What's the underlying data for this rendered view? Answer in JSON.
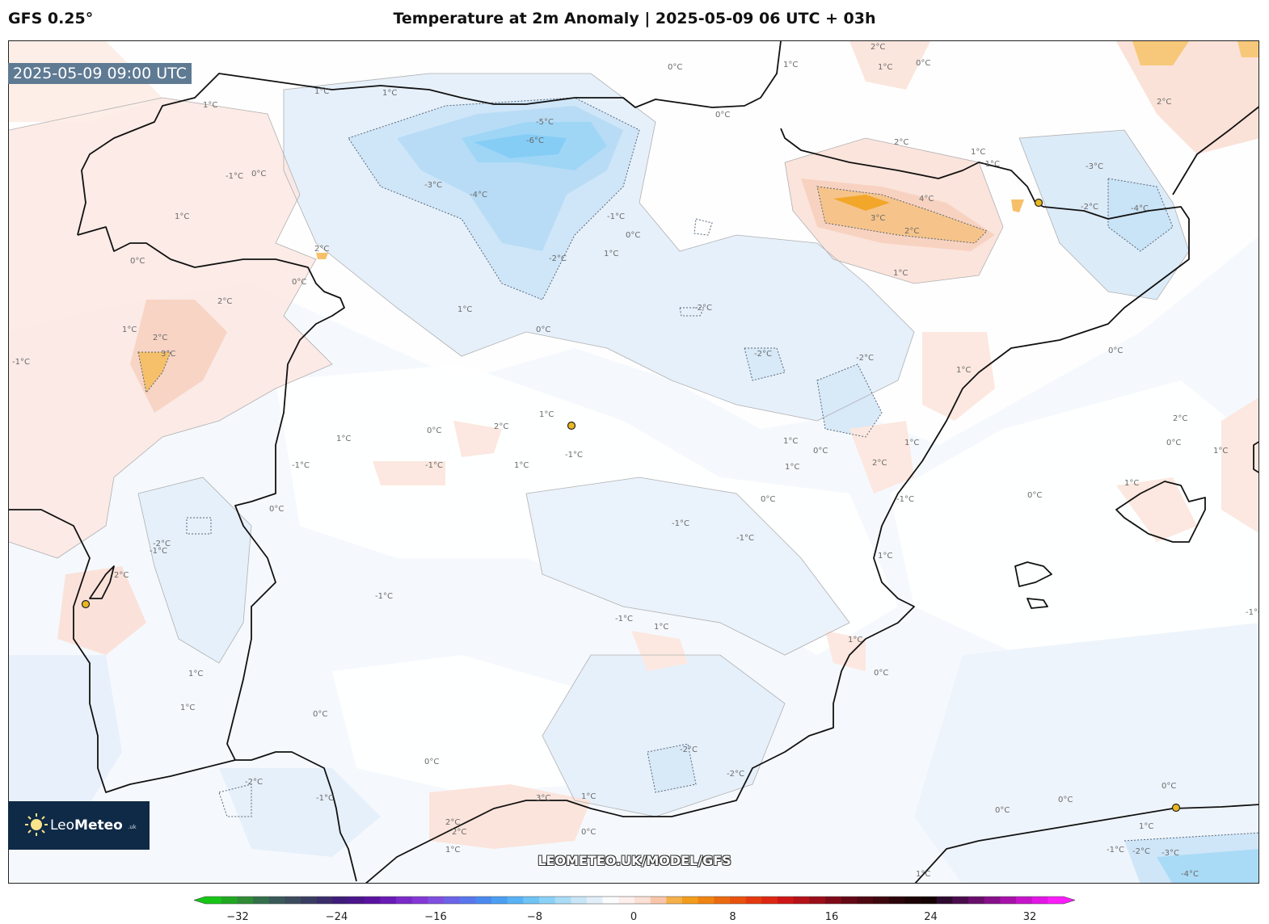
{
  "header": {
    "model": "GFS 0.25°",
    "title": "Temperature at 2m Anomaly | 2025-05-09 06 UTC + 03h"
  },
  "map": {
    "timestamp": "2025-05-09 09:00 UTC",
    "watermark": "LEOMETEO.UK/MODEL/GFS",
    "contour_labels": {
      "c1": "0°C",
      "c2": "1°C",
      "c3": "1°C",
      "c4": "-5°C",
      "c5": "-6°C",
      "c6": "-3°C",
      "c7": "-4°C",
      "c8": "-2°C",
      "c9": "-1°C",
      "c10": "0°C",
      "c11": "1°C",
      "c12": "2°C",
      "c13": "-1°C",
      "c14": "0°C",
      "c15": "2°C",
      "c16": "0°C",
      "c17": "2°C",
      "c18": "3°C",
      "c19": "1°C",
      "c20": "1°C",
      "c21": "0°C",
      "c22": "1°C",
      "c23": "1°C",
      "c24": "0°C",
      "c25": "1°C",
      "c26": "1°C",
      "c27": "-1°C",
      "c28": "2°C",
      "c29": "1°C",
      "c30": "1°C",
      "c31": "0°C",
      "c32": "-1°C",
      "c33": "-1°C",
      "c34": "1°C",
      "c35": "-1°C",
      "c36": "0°C",
      "c37": "-2°C",
      "c38": "-2°C",
      "c39": "-2°C",
      "c40": "-2°C",
      "c41": "1°C",
      "c42": "0°C",
      "c43": "1°C",
      "c44": "2°C",
      "c45": "-1°C",
      "c46": "0°C",
      "c47": "-1°C",
      "c48": "1°C",
      "c49": "0°C",
      "c50": "2°C",
      "c51": "4°C",
      "c52": "3°C",
      "c53": "2°C",
      "c54": "1°C",
      "c55": "1°C",
      "c56": "0°C",
      "c57": "2°C",
      "c58": "1°C",
      "c59": "-1°C",
      "c60": "-3°C",
      "c61": "-2°C",
      "c62": "-4°C",
      "c63": "2°C",
      "c64": "0°C",
      "c65": "0°C",
      "c66": "1°C",
      "c67": "1°C",
      "c68": "0°C",
      "c69": "-1°C",
      "c70": "0°C",
      "c71": "2°C",
      "c72": "1°C",
      "c73": "-1°C",
      "c74": "-2°C",
      "c75": "-2°C",
      "c76": "1°C",
      "c77": "0°C",
      "c78": "1°C",
      "c79": "0°C",
      "c80": "-1°C",
      "c81": "0°C",
      "c82": "0°C",
      "c83": "0°C",
      "c84": "1°C",
      "c85": "-1°C",
      "c86": "-2°C",
      "c87": "-3°C",
      "c88": "-4°C",
      "c89": "1°C",
      "c90": "1°C",
      "c91": "2°C",
      "c92": "1°C",
      "c93": "1°C",
      "c94": "0°C",
      "c95": "-1°C",
      "c96": "-2°C",
      "c97": "2°C",
      "c98": "3°C",
      "c99": "2°C",
      "c100": "1°C",
      "c101": "-1°C",
      "c102": "-1°C"
    }
  },
  "logo": {
    "brand_a": "Leo",
    "brand_b": "Meteo",
    "tld": ".uk"
  },
  "colorbar": {
    "ticks": [
      "−32",
      "−24",
      "−16",
      "−8",
      "0",
      "8",
      "16",
      "24",
      "32"
    ],
    "colors": [
      "#17c517",
      "#21a821",
      "#2f8c34",
      "#33704a",
      "#3a5959",
      "#3c4b5c",
      "#3a3d62",
      "#3b2c6b",
      "#3f1c79",
      "#4b158b",
      "#5a13a0",
      "#6a1ab5",
      "#7a2ac8",
      "#8338d6",
      "#7f4fe0",
      "#6d63e8",
      "#5976ed",
      "#4a8af0",
      "#4b9ff2",
      "#58b2f4",
      "#6fc3f5",
      "#8bd0f6",
      "#aadcf6",
      "#c8e6f6",
      "#e3eff8",
      "#fafcfd",
      "#fdf0ec",
      "#fbe0d5",
      "#f7c6a8",
      "#f5b04a",
      "#f39c1c",
      "#f08412",
      "#ec6a0f",
      "#e8520e",
      "#e33a0f",
      "#dd2713",
      "#cf1616",
      "#b51218",
      "#9a0e1a",
      "#7e0a18",
      "#640816",
      "#4f0712",
      "#3e070e",
      "#2b050a",
      "#1c0406",
      "#140203",
      "#2e0a2e",
      "#4a0c4c",
      "#670e6a",
      "#861089",
      "#a612a9",
      "#c614c8",
      "#e216e5",
      "#fa1dfa"
    ]
  }
}
